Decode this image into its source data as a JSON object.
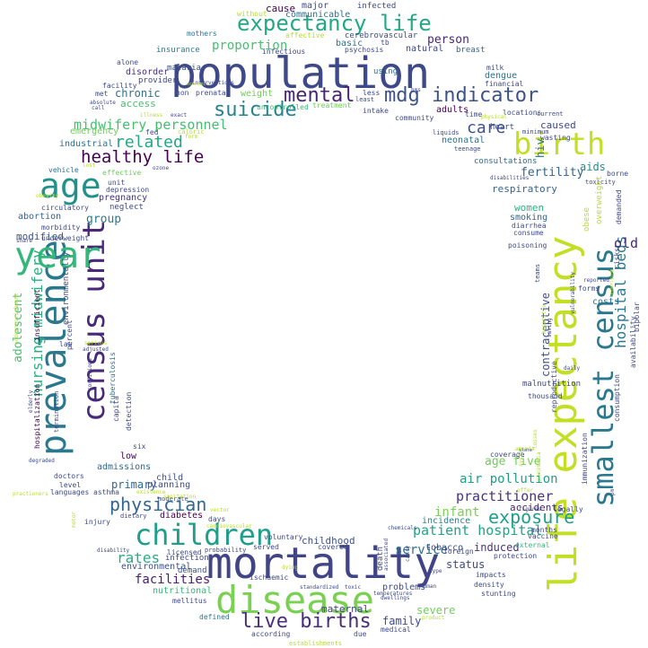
{
  "words": [
    {
      "text": "population",
      "color": "#3e4989"
    },
    {
      "text": "mortality",
      "color": "#414487"
    },
    {
      "text": "disease",
      "color": "#7ad151"
    },
    {
      "text": "life expectancy",
      "color": "#c2df23"
    },
    {
      "text": "prevalence",
      "color": "#2a788e"
    },
    {
      "text": "census unit",
      "color": "#482878"
    },
    {
      "text": "smallest census",
      "color": "#2a788e"
    },
    {
      "text": "year",
      "color": "#35b779"
    },
    {
      "text": "age",
      "color": "#21918c"
    },
    {
      "text": "children",
      "color": "#1f9e89"
    },
    {
      "text": "birth",
      "color": "#c2df23"
    },
    {
      "text": "expectancy life",
      "color": "#22a884"
    },
    {
      "text": "mdg indicator",
      "color": "#3b528b"
    },
    {
      "text": "suicide",
      "color": "#26828e"
    },
    {
      "text": "mental",
      "color": "#482475"
    },
    {
      "text": "live births",
      "color": "#472d7b"
    },
    {
      "text": "healthy life",
      "color": "#440154"
    },
    {
      "text": "physician",
      "color": "#31688e"
    },
    {
      "text": "exposure",
      "color": "#1f9e89"
    },
    {
      "text": "nursing midwifery",
      "color": "#2ab07f"
    },
    {
      "text": "hospital beds",
      "color": "#2a788e"
    },
    {
      "text": "related",
      "color": "#22a884"
    },
    {
      "text": "midwifery personnel",
      "color": "#44bf70"
    },
    {
      "text": "patient hospital",
      "color": "#20a386"
    },
    {
      "text": "care",
      "color": "#3b528b"
    },
    {
      "text": "rates",
      "color": "#27ad81"
    },
    {
      "text": "practitioner",
      "color": "#46327e"
    },
    {
      "text": "air pollution",
      "color": "#1f9e89"
    },
    {
      "text": "service",
      "color": "#2c728e"
    },
    {
      "text": "facilities",
      "color": "#481f70"
    },
    {
      "text": "age five",
      "color": "#6ece58"
    },
    {
      "text": "childhood",
      "color": "#3b528b"
    },
    {
      "text": "adolescent",
      "color": "#4ac16d"
    },
    {
      "text": "fertility",
      "color": "#33638d"
    },
    {
      "text": "old",
      "color": "#482878"
    },
    {
      "text": "hiv",
      "color": "#2c728e"
    },
    {
      "text": "aids",
      "color": "#228c8d"
    },
    {
      "text": "women",
      "color": "#2ab07f"
    },
    {
      "text": "group",
      "color": "#287c8e"
    },
    {
      "text": "infant",
      "color": "#7ad151"
    },
    {
      "text": "person",
      "color": "#482878"
    },
    {
      "text": "induced",
      "color": "#46337e"
    },
    {
      "text": "primary",
      "color": "#31688e"
    },
    {
      "text": "family",
      "color": "#3e4989"
    },
    {
      "text": "contraceptive",
      "color": "#3b528b"
    },
    {
      "text": "severe",
      "color": "#6ece58"
    },
    {
      "text": "status",
      "color": "#3e4989"
    },
    {
      "text": "chronic",
      "color": "#2d708e"
    },
    {
      "text": "respiratory",
      "color": "#33638d"
    },
    {
      "text": "modified",
      "color": "#3b528b"
    },
    {
      "text": "maternal",
      "color": "#433e85"
    },
    {
      "text": "abortion",
      "color": "#33638d"
    },
    {
      "text": "neonatal",
      "color": "#2c728e"
    },
    {
      "text": "accidents",
      "color": "#482575"
    },
    {
      "text": "access",
      "color": "#46c06f"
    },
    {
      "text": "proportion",
      "color": "#44bf70"
    },
    {
      "text": "emergency",
      "color": "#6ece58"
    },
    {
      "text": "adults",
      "color": "#440154"
    },
    {
      "text": "environmental",
      "color": "#3b528b"
    },
    {
      "text": "caused",
      "color": "#3e4989"
    },
    {
      "text": "industrial",
      "color": "#2d708e"
    },
    {
      "text": "admissions",
      "color": "#31688e"
    },
    {
      "text": "incidence",
      "color": "#26828e"
    },
    {
      "text": "planning",
      "color": "#3e4989"
    },
    {
      "text": "diabetes",
      "color": "#440154"
    },
    {
      "text": "problems",
      "color": "#3e4989"
    },
    {
      "text": "costs",
      "color": "#2c728e"
    },
    {
      "text": "tobacco",
      "color": "#3e4989"
    },
    {
      "text": "dengue",
      "color": "#2c728e"
    },
    {
      "text": "pregnancy",
      "color": "#46327e"
    },
    {
      "text": "smoking",
      "color": "#33638d"
    },
    {
      "text": "consultations",
      "color": "#31688e"
    },
    {
      "text": "infection",
      "color": "#3e4989"
    },
    {
      "text": "death",
      "color": "#3e4989"
    },
    {
      "text": "low",
      "color": "#440154"
    },
    {
      "text": "child",
      "color": "#3b528b"
    },
    {
      "text": "demand",
      "color": "#3b528b"
    },
    {
      "text": "nutritional",
      "color": "#35b779"
    },
    {
      "text": "weight",
      "color": "#6ece58"
    },
    {
      "text": "communicable",
      "color": "#2c728e"
    },
    {
      "text": "cerebrovascular",
      "color": "#3e4989"
    },
    {
      "text": "infected",
      "color": "#3e4989"
    },
    {
      "text": "major",
      "color": "#3e4989"
    },
    {
      "text": "cause",
      "color": "#440154"
    },
    {
      "text": "basic",
      "color": "#2c728e"
    },
    {
      "text": "breast",
      "color": "#31688e"
    },
    {
      "text": "natural",
      "color": "#3e4989"
    },
    {
      "text": "malaria",
      "color": "#3b528b"
    },
    {
      "text": "insurance",
      "color": "#2a788e"
    },
    {
      "text": "disorder",
      "color": "#46327e"
    },
    {
      "text": "provider",
      "color": "#3e4989"
    },
    {
      "text": "facility",
      "color": "#3e4989"
    },
    {
      "text": "mothers",
      "color": "#2c728e"
    },
    {
      "text": "alone",
      "color": "#3e4989"
    },
    {
      "text": "without",
      "color": "#b5de2b"
    },
    {
      "text": "affective",
      "color": "#b5de2b"
    },
    {
      "text": "infectious",
      "color": "#3e4989"
    },
    {
      "text": "psychosis",
      "color": "#3e4989"
    },
    {
      "text": "using",
      "color": "#2c728e"
    },
    {
      "text": "milk",
      "color": "#3e4989"
    },
    {
      "text": "financial",
      "color": "#3e4989"
    },
    {
      "text": "less",
      "color": "#3e4989"
    },
    {
      "text": "least",
      "color": "#3e4989"
    },
    {
      "text": "intake",
      "color": "#3e4989"
    },
    {
      "text": "community",
      "color": "#3e4989"
    },
    {
      "text": "prenatal",
      "color": "#3e4989"
    },
    {
      "text": "uncontrolled",
      "color": "#35b779"
    },
    {
      "text": "treatment",
      "color": "#6ece58"
    },
    {
      "text": "met",
      "color": "#3e4989"
    },
    {
      "text": "fed",
      "color": "#3e4989"
    },
    {
      "text": "caloric",
      "color": "#b5de2b"
    },
    {
      "text": "vehicle",
      "color": "#2c728e"
    },
    {
      "text": "effective",
      "color": "#6ece58"
    },
    {
      "text": "unit",
      "color": "#3e4989"
    },
    {
      "text": "depression",
      "color": "#3e4989"
    },
    {
      "text": "neglect",
      "color": "#3e4989"
    },
    {
      "text": "circulatory",
      "color": "#3e4989"
    },
    {
      "text": "morbidity",
      "color": "#3e4989"
    },
    {
      "text": "underweight",
      "color": "#3e4989"
    },
    {
      "text": "percent",
      "color": "#3e4989"
    },
    {
      "text": "insufficient",
      "color": "#440154"
    },
    {
      "text": "environmentally",
      "color": "#3e4989"
    },
    {
      "text": "hospitalization",
      "color": "#440154"
    },
    {
      "text": "capita",
      "color": "#3e4989"
    },
    {
      "text": "detection",
      "color": "#3e4989"
    },
    {
      "text": "tuberculosis",
      "color": "#2c728e"
    },
    {
      "text": "six",
      "color": "#3e4989"
    },
    {
      "text": "doctors",
      "color": "#3e4989"
    },
    {
      "text": "level",
      "color": "#3e4989"
    },
    {
      "text": "asthma",
      "color": "#3e4989"
    },
    {
      "text": "languages",
      "color": "#3e4989"
    },
    {
      "text": "injury",
      "color": "#3e4989"
    },
    {
      "text": "dietary",
      "color": "#3e4989"
    },
    {
      "text": "days",
      "color": "#3e4989"
    },
    {
      "text": "served",
      "color": "#3e4989"
    },
    {
      "text": "voluntary",
      "color": "#3e4989"
    },
    {
      "text": "covered",
      "color": "#3e4989"
    },
    {
      "text": "licensed",
      "color": "#3e4989"
    },
    {
      "text": "probability",
      "color": "#3e4989"
    },
    {
      "text": "ischaemic",
      "color": "#3e4989"
    },
    {
      "text": "mellitus",
      "color": "#3e4989"
    },
    {
      "text": "defined",
      "color": "#2c728e"
    },
    {
      "text": "according",
      "color": "#3e4989"
    },
    {
      "text": "due",
      "color": "#3e4989"
    },
    {
      "text": "medical",
      "color": "#3e4989"
    },
    {
      "text": "foreign",
      "color": "#3e4989"
    },
    {
      "text": "impacts",
      "color": "#3e4989"
    },
    {
      "text": "density",
      "color": "#3e4989"
    },
    {
      "text": "stunting",
      "color": "#3e4989"
    },
    {
      "text": "protection",
      "color": "#3e4989"
    },
    {
      "text": "external",
      "color": "#35b779"
    },
    {
      "text": "months",
      "color": "#3e4989"
    },
    {
      "text": "legally",
      "color": "#3e4989"
    },
    {
      "text": "immunization",
      "color": "#3e4989"
    },
    {
      "text": "vaccine",
      "color": "#3e4989"
    },
    {
      "text": "coverage",
      "color": "#3e4989"
    },
    {
      "text": "thousand",
      "color": "#3e4989"
    },
    {
      "text": "reproductive",
      "color": "#3e4989"
    },
    {
      "text": "consumption",
      "color": "#3e4989"
    },
    {
      "text": "availability",
      "color": "#3e4989"
    },
    {
      "text": "bipolar",
      "color": "#3e4989"
    },
    {
      "text": "risks",
      "color": "#3e4989"
    },
    {
      "text": "demanded",
      "color": "#3e4989"
    },
    {
      "text": "forms",
      "color": "#3e4989"
    },
    {
      "text": "teams",
      "color": "#3e4989"
    },
    {
      "text": "malnutrition",
      "color": "#3e4989"
    },
    {
      "text": "toxicity",
      "color": "#3e4989"
    },
    {
      "text": "diarrhea",
      "color": "#3e4989"
    },
    {
      "text": "poisoning",
      "color": "#3e4989"
    },
    {
      "text": "consume",
      "color": "#3e4989"
    },
    {
      "text": "wasting",
      "color": "#3e4989"
    },
    {
      "text": "teenage",
      "color": "#3e4989"
    },
    {
      "text": "liquids",
      "color": "#3e4989"
    },
    {
      "text": "locations",
      "color": "#3e4989"
    },
    {
      "text": "current",
      "color": "#3e4989"
    },
    {
      "text": "minimum",
      "color": "#3e4989"
    },
    {
      "text": "time",
      "color": "#3e4989"
    },
    {
      "text": "heart",
      "color": "#3e4989"
    },
    {
      "text": "physical",
      "color": "#b5de2b"
    },
    {
      "text": "borne",
      "color": "#3e4989"
    },
    {
      "text": "tb",
      "color": "#3e4989"
    },
    {
      "text": "call",
      "color": "#3e4989"
    },
    {
      "text": "absolute",
      "color": "#3e4989"
    },
    {
      "text": "non",
      "color": "#3e4989"
    },
    {
      "text": "illness",
      "color": "#b5de2b"
    },
    {
      "text": "form",
      "color": "#b5de2b"
    },
    {
      "text": "ozone",
      "color": "#3e4989"
    },
    {
      "text": "lost",
      "color": "#b5de2b"
    },
    {
      "text": "obesity",
      "color": "#b5de2b"
    },
    {
      "text": "share",
      "color": "#3e4989"
    },
    {
      "text": "undernourishment",
      "color": "#b5de2b"
    },
    {
      "text": "serious",
      "color": "#b5de2b"
    },
    {
      "text": "adjusted",
      "color": "#3e4989"
    },
    {
      "text": "law",
      "color": "#3e4989"
    },
    {
      "text": "elderly",
      "color": "#3e4989"
    },
    {
      "text": "degraded",
      "color": "#3e4989"
    },
    {
      "text": "conditions",
      "color": "#3e4989"
    },
    {
      "text": "termination",
      "color": "#3e4989"
    },
    {
      "text": "moderate",
      "color": "#3e4989"
    },
    {
      "text": "existence",
      "color": "#b5de2b"
    },
    {
      "text": "sanitation",
      "color": "#b5de2b"
    },
    {
      "text": "vector",
      "color": "#b5de2b"
    },
    {
      "text": "motor",
      "color": "#b5de2b"
    },
    {
      "text": "disability",
      "color": "#3e4989"
    },
    {
      "text": "cardiovascular",
      "color": "#b5de2b"
    },
    {
      "text": "dying",
      "color": "#b5de2b"
    },
    {
      "text": "standardized",
      "color": "#3e4989"
    },
    {
      "text": "toxic",
      "color": "#3e4989"
    },
    {
      "text": "human",
      "color": "#3e4989"
    },
    {
      "text": "dwellings",
      "color": "#3e4989"
    },
    {
      "text": "temperatures",
      "color": "#3e4989"
    },
    {
      "text": "product",
      "color": "#b5de2b"
    },
    {
      "text": "establishments",
      "color": "#b5de2b"
    },
    {
      "text": "chemicals",
      "color": "#3e4989"
    },
    {
      "text": "type",
      "color": "#3e4989"
    },
    {
      "text": "pneumonia",
      "color": "#b5de2b"
    },
    {
      "text": "offer",
      "color": "#b5de2b"
    },
    {
      "text": "anemia",
      "color": "#b5de2b"
    },
    {
      "text": "system",
      "color": "#b5de2b"
    },
    {
      "text": "losses",
      "color": "#b5de2b"
    },
    {
      "text": "slate",
      "color": "#3e4989"
    },
    {
      "text": "figures",
      "color": "#3e4989"
    },
    {
      "text": "hepatitis",
      "color": "#b5de2b"
    },
    {
      "text": "daily",
      "color": "#3e4989"
    },
    {
      "text": "overweight",
      "color": "#b5de2b"
    },
    {
      "text": "obese",
      "color": "#b5de2b"
    },
    {
      "text": "vulnerability",
      "color": "#3e4989"
    },
    {
      "text": "saving",
      "color": "#3e4989"
    },
    {
      "text": "reported",
      "color": "#3e4989"
    },
    {
      "text": "underlying",
      "color": "#b5de2b"
    },
    {
      "text": "hms",
      "color": "#3e4989"
    },
    {
      "text": "disabilities",
      "color": "#3e4989"
    },
    {
      "text": "practioners",
      "color": "#b5de2b"
    },
    {
      "text": "exact",
      "color": "#3e4989"
    },
    {
      "text": "interventions",
      "color": "#3e4989"
    },
    {
      "text": "economic",
      "color": "#b5de2b"
    },
    {
      "text": "associated",
      "color": "#3e4989"
    },
    {
      "text": "carry",
      "color": "#3e4989"
    },
    {
      "text": "pm",
      "color": "#3e4989"
    }
  ]
}
